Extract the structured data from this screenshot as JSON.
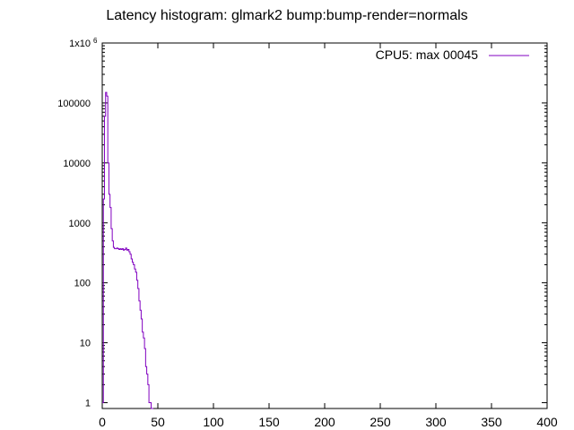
{
  "chart_data": {
    "type": "line",
    "title": "Latency histogram:  glmark2 bump:bump-render=normals",
    "xlabel": "",
    "ylabel": "",
    "xlim": [
      0,
      400
    ],
    "ylim": [
      0.8,
      1000000
    ],
    "y_scale": "log",
    "grid": false,
    "legend_position": "top-right",
    "x_ticks": [
      0,
      50,
      100,
      150,
      200,
      250,
      300,
      350,
      400
    ],
    "y_ticks": [
      {
        "value": 1,
        "label": "1"
      },
      {
        "value": 10,
        "label": "10"
      },
      {
        "value": 100,
        "label": "100"
      },
      {
        "value": 1000,
        "label": "1000"
      },
      {
        "value": 10000,
        "label": "10000"
      },
      {
        "value": 100000,
        "label": "100000"
      }
    ],
    "y_top_label": {
      "base": "1x10",
      "exponent": "6"
    },
    "series": [
      {
        "name": "CPU5: max 00045",
        "color": "#8000c0",
        "points": [
          [
            0,
            1
          ],
          [
            1,
            2500
          ],
          [
            2,
            60000
          ],
          [
            3,
            150000
          ],
          [
            4,
            130000
          ],
          [
            5,
            10000
          ],
          [
            6,
            3000
          ],
          [
            7,
            1800
          ],
          [
            8,
            800
          ],
          [
            9,
            500
          ],
          [
            10,
            390
          ],
          [
            11,
            370
          ],
          [
            12,
            370
          ],
          [
            13,
            380
          ],
          [
            14,
            370
          ],
          [
            15,
            360
          ],
          [
            16,
            370
          ],
          [
            17,
            360
          ],
          [
            18,
            370
          ],
          [
            19,
            350
          ],
          [
            20,
            360
          ],
          [
            21,
            380
          ],
          [
            22,
            350
          ],
          [
            23,
            360
          ],
          [
            24,
            330
          ],
          [
            25,
            300
          ],
          [
            26,
            250
          ],
          [
            27,
            220
          ],
          [
            28,
            200
          ],
          [
            29,
            170
          ],
          [
            30,
            150
          ],
          [
            31,
            110
          ],
          [
            32,
            80
          ],
          [
            33,
            50
          ],
          [
            34,
            35
          ],
          [
            35,
            25
          ],
          [
            36,
            15
          ],
          [
            37,
            12
          ],
          [
            38,
            8
          ],
          [
            39,
            4
          ],
          [
            40,
            3
          ],
          [
            41,
            2
          ],
          [
            42,
            1
          ],
          [
            43,
            1
          ],
          [
            44,
            0.8
          ],
          [
            45,
            0.8
          ]
        ]
      }
    ]
  }
}
